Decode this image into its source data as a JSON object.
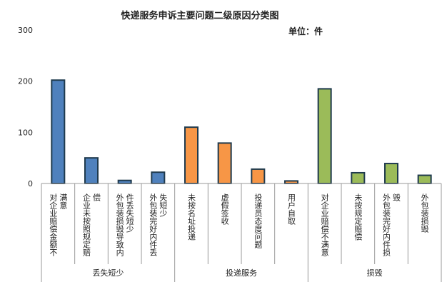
{
  "chart_data": {
    "type": "bar",
    "title": "快递服务申诉主要问题二级原因分类图",
    "unit_label": "单位：件",
    "ylim": [
      0,
      300
    ],
    "yticks": [
      "0",
      "100",
      "200",
      "300"
    ],
    "grid": false,
    "legend": "none",
    "groups": [
      {
        "name": "丢失短少",
        "color": "#4F81BD",
        "categories": [
          {
            "label": [
              "对企业赔偿金额不",
              "满意"
            ],
            "value": 202
          },
          {
            "label": [
              "企业未按照规定赔",
              "偿"
            ],
            "value": 50
          },
          {
            "label": [
              "外包装损毁导致内",
              "件丢失短少"
            ],
            "value": 6
          },
          {
            "label": [
              "外包装完好内件丢",
              "失短少"
            ],
            "value": 22
          }
        ]
      },
      {
        "name": "投递服务",
        "color": "#F79646",
        "categories": [
          {
            "label": [
              "未按名址投递"
            ],
            "value": 110
          },
          {
            "label": [
              "虚假签收"
            ],
            "value": 79
          },
          {
            "label": [
              "投递员态度问题"
            ],
            "value": 28
          },
          {
            "label": [
              "用户自取"
            ],
            "value": 5
          }
        ]
      },
      {
        "name": "损毁",
        "color": "#9BBB59",
        "categories": [
          {
            "label": [
              "对企业赔偿不满意"
            ],
            "value": 185
          },
          {
            "label": [
              "未按规定赔偿"
            ],
            "value": 21
          },
          {
            "label": [
              "外包装完好内件损",
              "毁"
            ],
            "value": 39
          },
          {
            "label": [
              "外包装损毁"
            ],
            "value": 16
          }
        ]
      }
    ]
  }
}
